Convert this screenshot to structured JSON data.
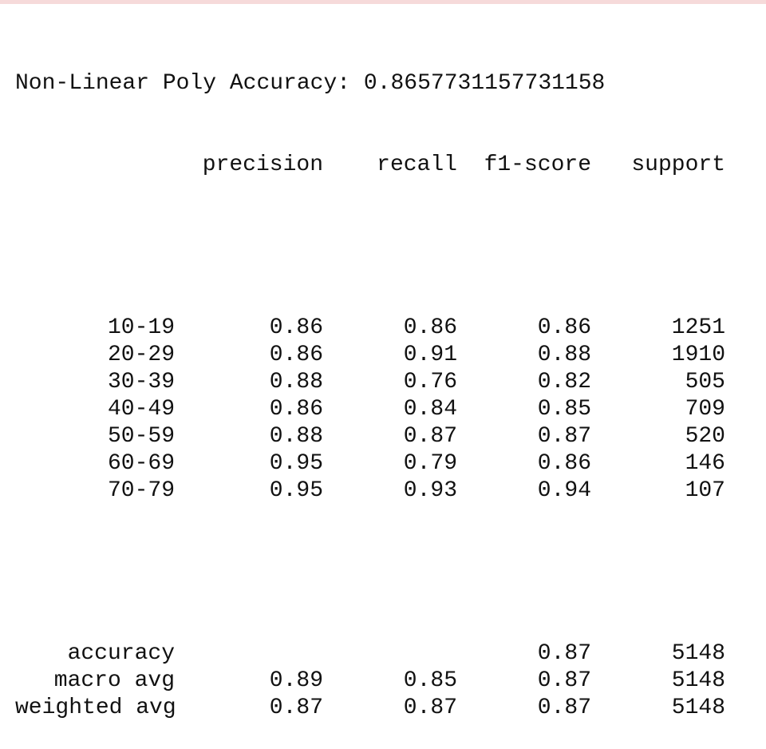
{
  "title": {
    "prefix": "Non-Linear Poly Accuracy:",
    "value": "0.8657731157731158"
  },
  "headers": [
    "precision",
    "recall",
    "f1-score",
    "support"
  ],
  "rows": [
    {
      "label": "10-19",
      "precision": "0.86",
      "recall": "0.86",
      "f1": "0.86",
      "support": "1251"
    },
    {
      "label": "20-29",
      "precision": "0.86",
      "recall": "0.91",
      "f1": "0.88",
      "support": "1910"
    },
    {
      "label": "30-39",
      "precision": "0.88",
      "recall": "0.76",
      "f1": "0.82",
      "support": "505"
    },
    {
      "label": "40-49",
      "precision": "0.86",
      "recall": "0.84",
      "f1": "0.85",
      "support": "709"
    },
    {
      "label": "50-59",
      "precision": "0.88",
      "recall": "0.87",
      "f1": "0.87",
      "support": "520"
    },
    {
      "label": "60-69",
      "precision": "0.95",
      "recall": "0.79",
      "f1": "0.86",
      "support": "146"
    },
    {
      "label": "70-79",
      "precision": "0.95",
      "recall": "0.93",
      "f1": "0.94",
      "support": "107"
    }
  ],
  "summary": [
    {
      "label": "accuracy",
      "precision": "",
      "recall": "",
      "f1": "0.87",
      "support": "5148"
    },
    {
      "label": "macro avg",
      "precision": "0.89",
      "recall": "0.85",
      "f1": "0.87",
      "support": "5148"
    },
    {
      "label": "weighted avg",
      "precision": "0.87",
      "recall": "0.87",
      "f1": "0.87",
      "support": "5148"
    }
  ],
  "colors": {
    "text": "#111111",
    "background": "#ffffff",
    "top_strip": "#f6dada"
  }
}
